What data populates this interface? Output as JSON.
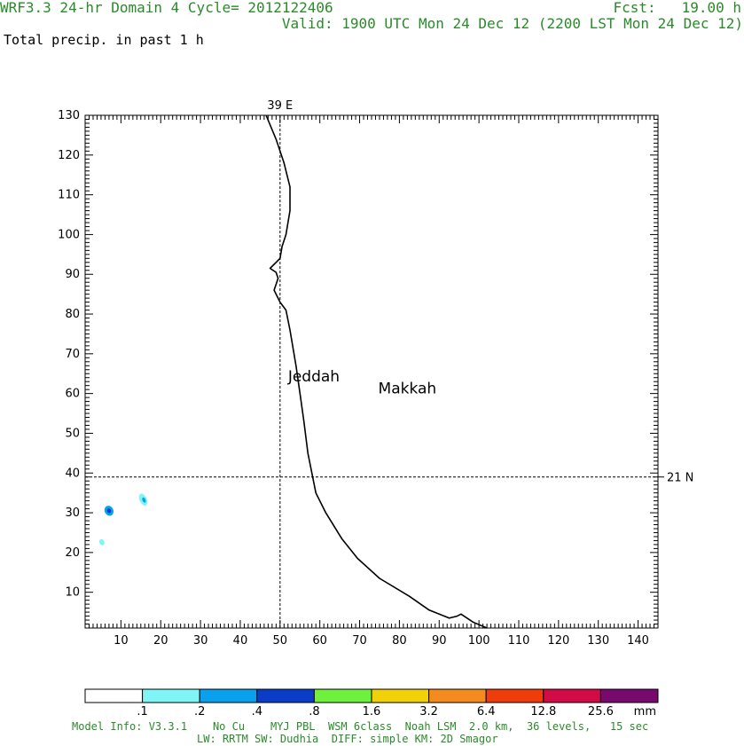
{
  "header": {
    "model_title": "WRF3.3 24-hr Domain 4 Cycle= 2012122406",
    "forecast": "Fcst:   19.00 h",
    "valid": "Valid: 1900 UTC Mon 24 Dec 12 (2200 LST Mon 24 Dec 12)",
    "field": "Total precip. in past 1 h"
  },
  "chart_data": {
    "type": "contour-map",
    "xlim": [
      1,
      145
    ],
    "ylim": [
      1,
      130
    ],
    "xticks": [
      10,
      20,
      30,
      40,
      50,
      60,
      70,
      80,
      90,
      100,
      110,
      120,
      130,
      140
    ],
    "yticks": [
      10,
      20,
      30,
      40,
      50,
      60,
      70,
      80,
      90,
      100,
      110,
      120,
      130
    ],
    "grid": false,
    "reference_lines": [
      {
        "orientation": "vertical",
        "value": 50,
        "label": "39 E"
      },
      {
        "orientation": "horizontal",
        "value": 39,
        "label": "21 N"
      }
    ],
    "coastline": [
      [
        46.5,
        130
      ],
      [
        49,
        124
      ],
      [
        51,
        118
      ],
      [
        52.5,
        112
      ],
      [
        52.5,
        106
      ],
      [
        51.5,
        100
      ],
      [
        50.5,
        97
      ],
      [
        50,
        94
      ],
      [
        49,
        93
      ],
      [
        47.5,
        91.5
      ],
      [
        49,
        90.5
      ],
      [
        49.5,
        89
      ],
      [
        48.5,
        86
      ],
      [
        50,
        83
      ],
      [
        51.5,
        81
      ],
      [
        52.5,
        76
      ],
      [
        54,
        67
      ],
      [
        55,
        60
      ],
      [
        56,
        53
      ],
      [
        57,
        45
      ],
      [
        59,
        35
      ],
      [
        61.5,
        30
      ],
      [
        65.5,
        23.5
      ],
      [
        69.5,
        18.5
      ],
      [
        75,
        13.5
      ],
      [
        82.5,
        9
      ],
      [
        87.5,
        5.5
      ],
      [
        92.5,
        3.5
      ],
      [
        94.5,
        4
      ],
      [
        95.5,
        4.5
      ],
      [
        98.5,
        2.5
      ],
      [
        102,
        1
      ]
    ],
    "cities": [
      {
        "name": "Jeddah",
        "x": 58.5,
        "y": 63
      },
      {
        "name": "Makkah",
        "x": 82,
        "y": 60
      }
    ],
    "precip_cells": [
      {
        "x": 7,
        "y": 30.5,
        "rx": 1.1,
        "ry": 1.3,
        "level": ".2"
      },
      {
        "x": 7,
        "y": 30.5,
        "rx": 0.5,
        "ry": 0.6,
        "level": ".4"
      },
      {
        "x": 15.6,
        "y": 33.3,
        "rx": 0.9,
        "ry": 1.6,
        "level": ".1"
      },
      {
        "x": 15.8,
        "y": 33.2,
        "rx": 0.4,
        "ry": 0.7,
        "level": ".2"
      },
      {
        "x": 5.2,
        "y": 22.6,
        "rx": 0.6,
        "ry": 0.8,
        "level": ".1"
      }
    ],
    "colorbar": {
      "colors": [
        "#ffffff",
        "#7ff5f5",
        "#0aa0ee",
        "#0a3cc8",
        "#6ef03c",
        "#f0d10a",
        "#f58a1e",
        "#ee3c0a",
        "#d20a46",
        "#780a6e"
      ],
      "labels": [
        ".1",
        ".2",
        ".4",
        ".8",
        "1.6",
        "3.2",
        "6.4",
        "12.8",
        "25.6"
      ],
      "unit": "mm"
    }
  },
  "footer": {
    "line1": "Model Info: V3.3.1    No Cu    MYJ PBL  WSM 6class  Noah LSM  2.0 km,  36 levels,   15 sec",
    "line2": "LW: RRTM SW: Dudhia  DIFF: simple KM: 2D Smagor"
  }
}
